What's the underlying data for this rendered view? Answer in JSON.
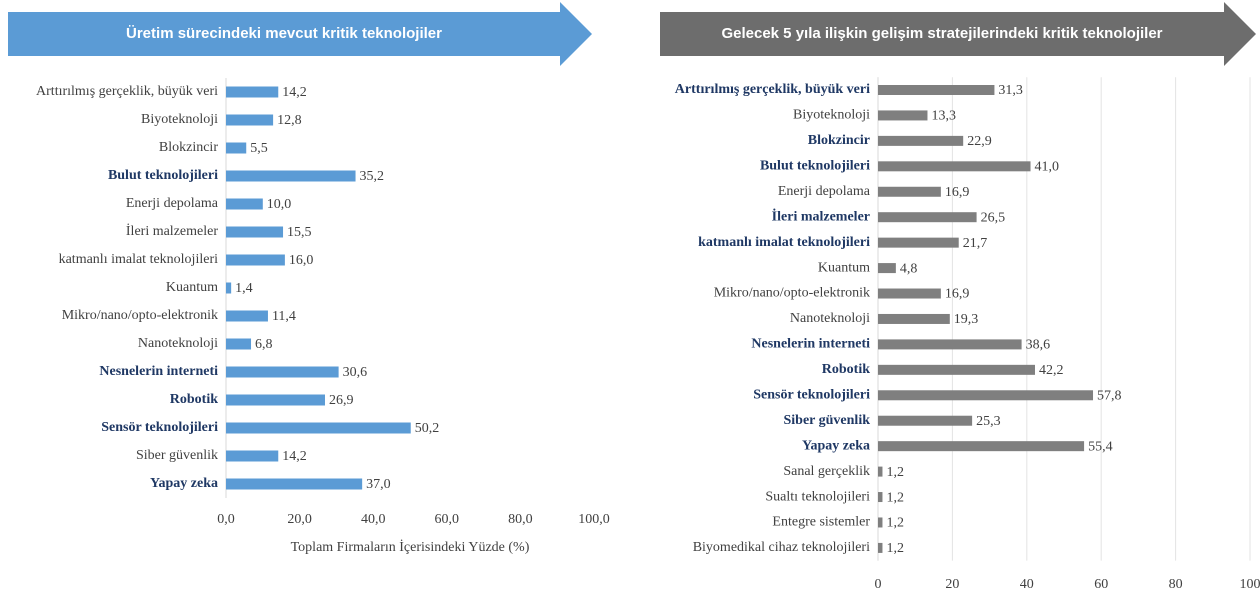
{
  "chart_data": [
    {
      "type": "bar",
      "orientation": "horizontal",
      "title": "Üretim sürecindeki mevcut kritik teknolojiler",
      "xlabel": "Toplam Firmaların İçerisindeki Yüzde (%)",
      "categories": [
        "Arttırılmış gerçeklik, büyük veri",
        "Biyoteknoloji",
        "Blokzincir",
        "Bulut teknolojileri",
        "Enerji depolama",
        "İleri malzemeler",
        "katmanlı imalat teknolojileri",
        "Kuantum",
        "Mikro/nano/opto-elektronik",
        "Nanoteknoloji",
        "Nesnelerin interneti",
        "Robotik",
        "Sensör teknolojileri",
        "Siber güvenlik",
        "Yapay zeka"
      ],
      "values": [
        14.2,
        12.8,
        5.5,
        35.2,
        10.0,
        15.5,
        16.0,
        1.4,
        11.4,
        6.8,
        30.6,
        26.9,
        50.2,
        14.2,
        37.0
      ],
      "value_labels": [
        "14,2",
        "12,8",
        "5,5",
        "35,2",
        "10,0",
        "15,5",
        "16,0",
        "1,4",
        "11,4",
        "6,8",
        "30,6",
        "26,9",
        "50,2",
        "14,2",
        "37,0"
      ],
      "bold": [
        false,
        false,
        false,
        true,
        false,
        false,
        false,
        false,
        false,
        false,
        true,
        true,
        true,
        false,
        true
      ],
      "color": "#5b9bd5",
      "banner_color": "#5b9bd5",
      "xlim": [
        0,
        100
      ],
      "xticks": [
        {
          "value": 0,
          "label": "0,0"
        },
        {
          "value": 20,
          "label": "20,0"
        },
        {
          "value": 40,
          "label": "40,0"
        },
        {
          "value": 60,
          "label": "60,0"
        },
        {
          "value": 80,
          "label": "80,0"
        },
        {
          "value": 100,
          "label": "100,0"
        }
      ],
      "grid": false
    },
    {
      "type": "bar",
      "orientation": "horizontal",
      "title": "Gelecek 5 yıla ilişkin gelişim stratejilerindeki kritik teknolojiler",
      "categories": [
        "Arttırılmış gerçeklik, büyük veri",
        "Biyoteknoloji",
        "Blokzincir",
        "Bulut teknolojileri",
        "Enerji depolama",
        "İleri malzemeler",
        "katmanlı imalat teknolojileri",
        "Kuantum",
        "Mikro/nano/opto-elektronik",
        "Nanoteknoloji",
        "Nesnelerin interneti",
        "Robotik",
        "Sensör teknolojileri",
        "Siber güvenlik",
        "Yapay zeka",
        "Sanal gerçeklik",
        "Sualtı teknolojileri",
        "Entegre sistemler",
        "Biyomedikal cihaz teknolojileri"
      ],
      "values": [
        31.3,
        13.3,
        22.9,
        41.0,
        16.9,
        26.5,
        21.7,
        4.8,
        16.9,
        19.3,
        38.6,
        42.2,
        57.8,
        25.3,
        55.4,
        1.2,
        1.2,
        1.2,
        1.2
      ],
      "value_labels": [
        "31,3",
        "13,3",
        "22,9",
        "41,0",
        "16,9",
        "26,5",
        "21,7",
        "4,8",
        "16,9",
        "19,3",
        "38,6",
        "42,2",
        "57,8",
        "25,3",
        "55,4",
        "1,2",
        "1,2",
        "1,2",
        "1,2"
      ],
      "bold": [
        true,
        false,
        true,
        true,
        false,
        true,
        true,
        false,
        false,
        false,
        true,
        true,
        true,
        true,
        true,
        false,
        false,
        false,
        false
      ],
      "color": "#7f7f7f",
      "banner_color": "#6d6d6d",
      "xlim": [
        0,
        100
      ],
      "xticks": [
        0,
        20,
        40,
        60,
        80,
        100
      ],
      "grid": true
    }
  ]
}
